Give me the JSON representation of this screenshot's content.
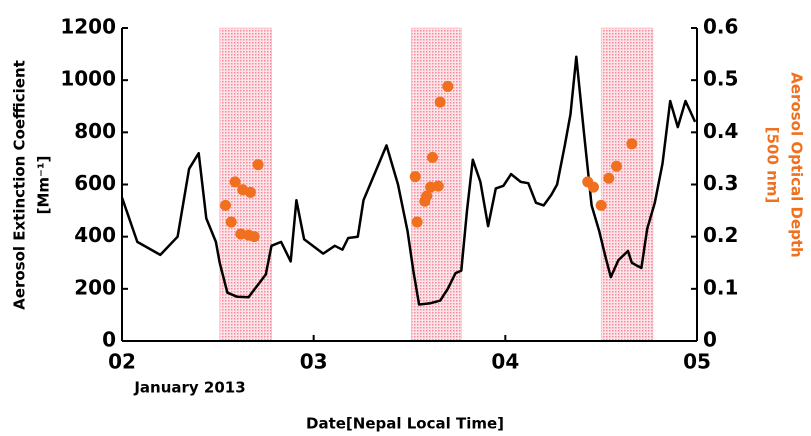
{
  "chart_data": {
    "type": "line",
    "x_label": "Date[Nepal Local Time]",
    "x_sublabel": "January 2013",
    "y_label": "Aerosol Extinction Coefficient",
    "y_label_units": "[Mm⁻¹]",
    "y2_label": "Aerosol Optical Depth",
    "y2_label_units": "[500 nm]",
    "xlim": [
      2,
      5
    ],
    "xticks": [
      {
        "value": 2,
        "label": "02"
      },
      {
        "value": 3,
        "label": "03"
      },
      {
        "value": 4,
        "label": "04"
      },
      {
        "value": 5,
        "label": "05"
      }
    ],
    "ylim": [
      0,
      1200
    ],
    "yticks": [
      0,
      200,
      400,
      600,
      800,
      1000,
      1200
    ],
    "y2lim": [
      0,
      0.6
    ],
    "y2ticks": [
      0,
      0.1,
      0.2,
      0.3,
      0.4,
      0.5,
      0.6
    ],
    "y2_color": "#f07020",
    "shaded_regions": [
      [
        2.51,
        2.78
      ],
      [
        3.51,
        3.77
      ],
      [
        4.5,
        4.77
      ]
    ],
    "shade_color": "#f7a8b4",
    "series": [
      {
        "type": "line",
        "color": "#000000",
        "x": [
          2.0,
          2.08,
          2.2,
          2.29,
          2.35,
          2.4,
          2.44,
          2.49,
          2.51,
          2.55,
          2.6,
          2.66,
          2.75,
          2.78,
          2.83,
          2.88,
          2.91,
          2.95,
          3.05,
          3.11,
          3.15,
          3.18,
          3.23,
          3.26,
          3.3,
          3.38,
          3.44,
          3.49,
          3.52,
          3.55,
          3.61,
          3.66,
          3.7,
          3.74,
          3.77,
          3.8,
          3.83,
          3.87,
          3.91,
          3.95,
          3.99,
          4.03,
          4.08,
          4.12,
          4.16,
          4.2,
          4.24,
          4.27,
          4.31,
          4.34,
          4.37,
          4.41,
          4.45,
          4.49,
          4.52,
          4.55,
          4.59,
          4.64,
          4.66,
          4.71,
          4.74,
          4.78,
          4.82,
          4.86,
          4.9,
          4.94,
          4.99
        ],
        "values": [
          550,
          380,
          330,
          400,
          660,
          720,
          470,
          380,
          300,
          185,
          170,
          168,
          255,
          365,
          380,
          305,
          540,
          390,
          335,
          365,
          350,
          395,
          400,
          540,
          610,
          750,
          600,
          420,
          270,
          140,
          145,
          155,
          200,
          260,
          270,
          500,
          695,
          610,
          440,
          585,
          595,
          640,
          610,
          605,
          530,
          520,
          560,
          600,
          750,
          870,
          1090,
          800,
          520,
          420,
          330,
          245,
          310,
          345,
          300,
          280,
          430,
          530,
          680,
          920,
          820,
          920,
          840
        ]
      },
      {
        "type": "scatter",
        "axis": "y2",
        "color": "#f07020",
        "x": [
          2.54,
          2.57,
          2.62,
          2.66,
          2.69,
          2.59,
          2.63,
          2.67,
          2.71,
          3.53,
          3.54,
          3.58,
          3.59,
          3.61,
          3.62,
          3.65,
          3.66,
          3.7,
          4.43,
          4.46,
          4.5,
          4.54,
          4.58,
          4.66
        ],
        "values": [
          0.26,
          0.228,
          0.205,
          0.203,
          0.2,
          0.305,
          0.29,
          0.285,
          0.338,
          0.315,
          0.228,
          0.268,
          0.278,
          0.295,
          0.352,
          0.297,
          0.458,
          0.488,
          0.305,
          0.295,
          0.26,
          0.312,
          0.335,
          0.378
        ]
      }
    ]
  }
}
